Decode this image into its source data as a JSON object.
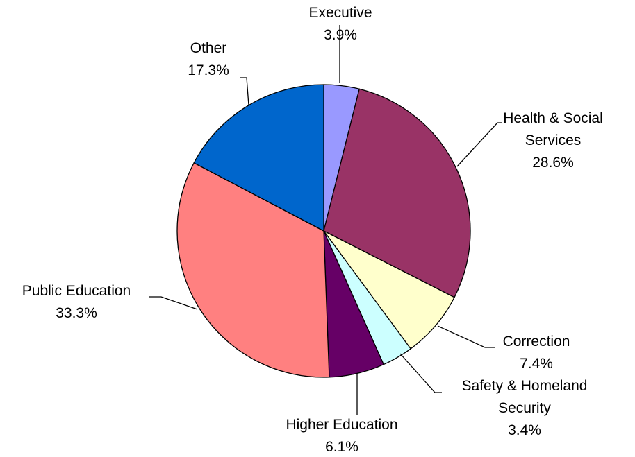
{
  "chart_data": {
    "type": "pie",
    "title": "",
    "start_angle_deg": 0,
    "direction": "clockwise",
    "slices": [
      {
        "category": "Executive",
        "label_lines": [
          "Executive"
        ],
        "value": 3.9,
        "value_label": "3.9%",
        "color": "#9999FF"
      },
      {
        "category": "Health & Social Services",
        "label_lines": [
          "Health & Social",
          "Services"
        ],
        "value": 28.6,
        "value_label": "28.6%",
        "color": "#993366"
      },
      {
        "category": "Correction",
        "label_lines": [
          "Correction"
        ],
        "value": 7.4,
        "value_label": "7.4%",
        "color": "#FFFFCC"
      },
      {
        "category": "Safety & Homeland Security",
        "label_lines": [
          "Safety & Homeland",
          "Security"
        ],
        "value": 3.4,
        "value_label": "3.4%",
        "color": "#CCFFFF"
      },
      {
        "category": "Higher Education",
        "label_lines": [
          "Higher Education"
        ],
        "value": 6.1,
        "value_label": "6.1%",
        "color": "#660066"
      },
      {
        "category": "Public Education",
        "label_lines": [
          "Public Education"
        ],
        "value": 33.3,
        "value_label": "33.3%",
        "color": "#FF8080"
      },
      {
        "category": "Other",
        "label_lines": [
          "Other"
        ],
        "value": 17.3,
        "value_label": "17.3%",
        "color": "#0066CC"
      }
    ]
  }
}
